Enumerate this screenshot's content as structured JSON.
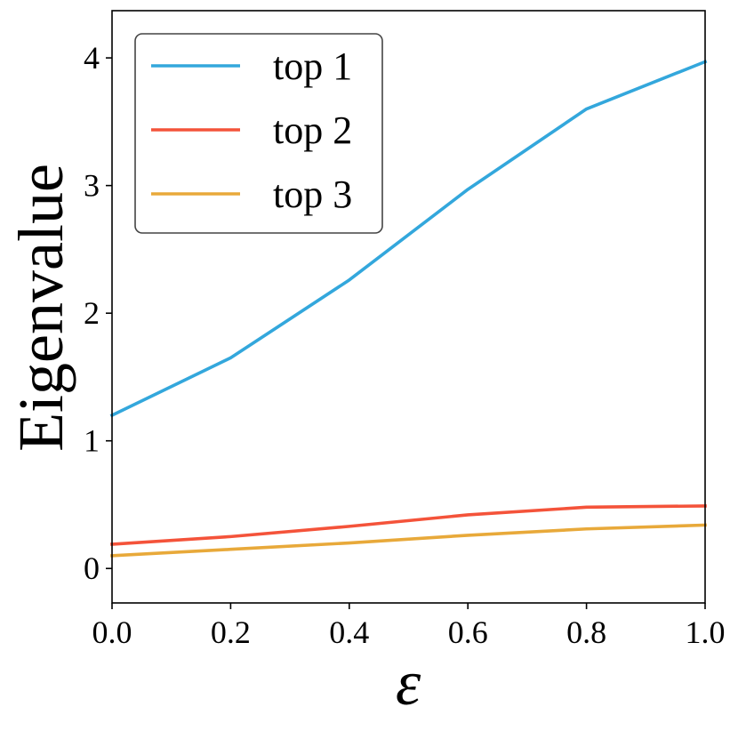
{
  "chart_data": {
    "type": "line",
    "title": "",
    "xlabel": "ε",
    "ylabel": "Eigenvalue",
    "x": [
      0.0,
      0.2,
      0.4,
      0.6,
      0.8,
      1.0
    ],
    "xlim": [
      0.0,
      1.0
    ],
    "ylim": [
      -0.27,
      4.37
    ],
    "xticks": [
      0.0,
      0.2,
      0.4,
      0.6,
      0.8,
      1.0
    ],
    "xtick_labels": [
      "0.0",
      "0.2",
      "0.4",
      "0.6",
      "0.8",
      "1.0"
    ],
    "yticks": [
      0,
      1,
      2,
      3,
      4
    ],
    "ytick_labels": [
      "0",
      "1",
      "2",
      "3",
      "4"
    ],
    "grid": false,
    "legend_position": "top-left",
    "series": [
      {
        "name": "top 1",
        "color": "#33a7dc",
        "values": [
          1.2,
          1.65,
          2.26,
          2.97,
          3.6,
          3.97
        ]
      },
      {
        "name": "top 2",
        "color": "#f4533a",
        "values": [
          0.19,
          0.25,
          0.33,
          0.42,
          0.48,
          0.49
        ]
      },
      {
        "name": "top 3",
        "color": "#e8a93a",
        "values": [
          0.1,
          0.15,
          0.2,
          0.26,
          0.31,
          0.34
        ]
      }
    ]
  }
}
